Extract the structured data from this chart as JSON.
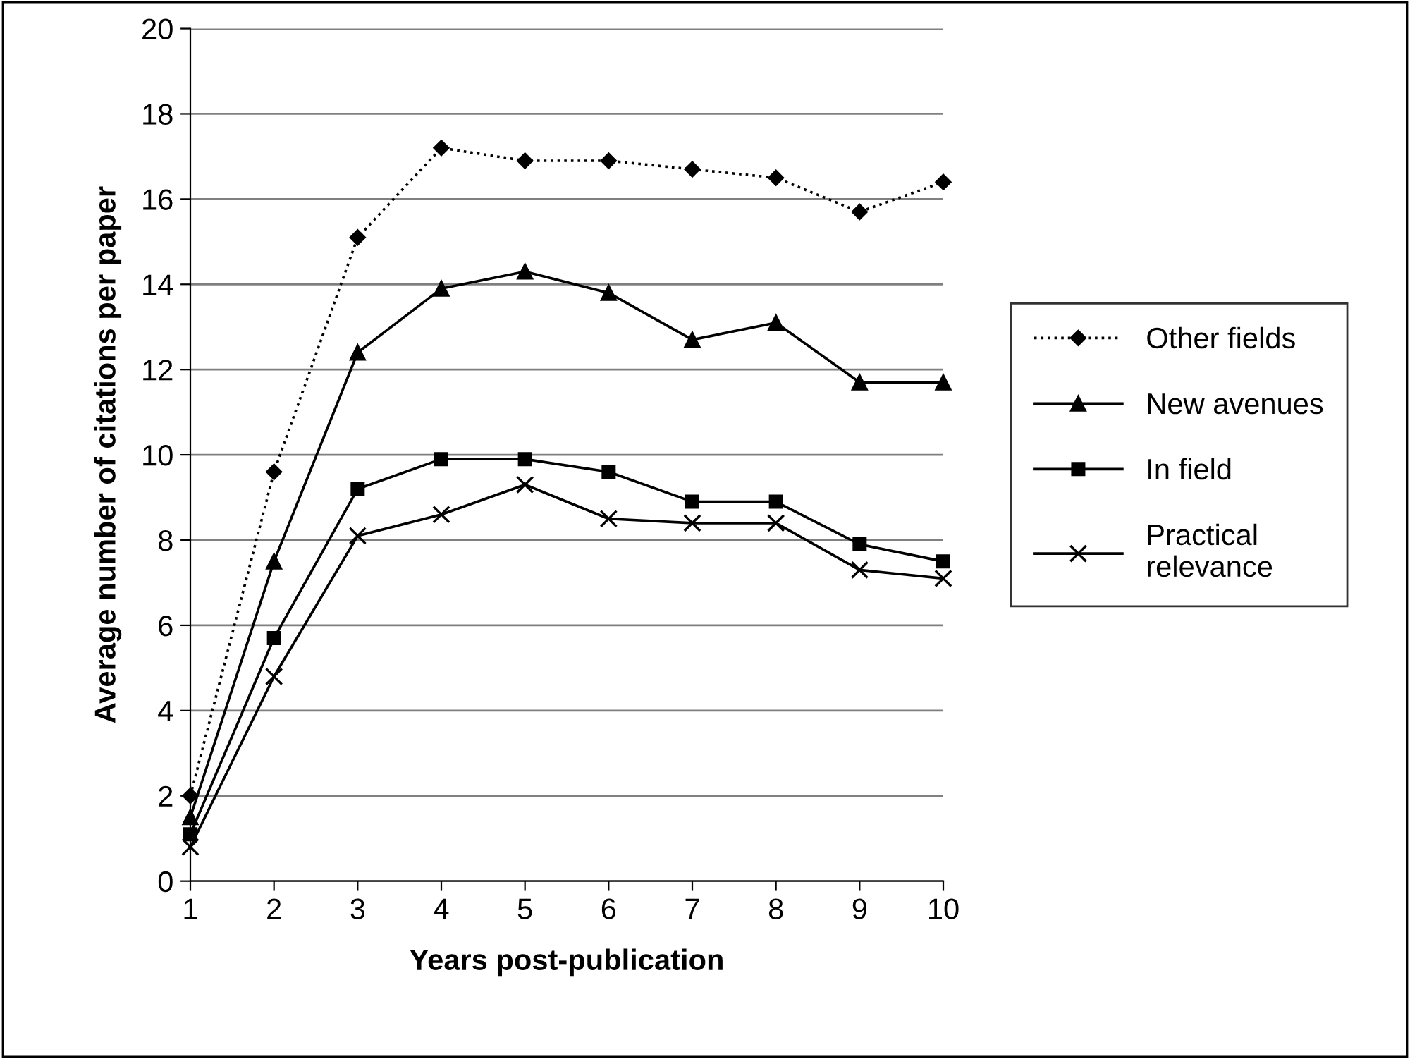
{
  "chart_data": {
    "type": "line",
    "xlabel": "Years post-publication",
    "ylabel": "Average number of citations per paper",
    "x": [
      1,
      2,
      3,
      4,
      5,
      6,
      7,
      8,
      9,
      10
    ],
    "xlim": [
      1,
      10
    ],
    "xticks": [
      1,
      2,
      3,
      4,
      5,
      6,
      7,
      8,
      9,
      10
    ],
    "ylim": [
      0,
      20
    ],
    "yticks": [
      0,
      2,
      4,
      6,
      8,
      10,
      12,
      14,
      16,
      18,
      20
    ],
    "grid": "y",
    "legend": "right",
    "series": [
      {
        "name": "Other fields",
        "color": "#000000",
        "marker": "diamond",
        "line_style": "dotted",
        "values": [
          2.0,
          9.6,
          15.1,
          17.2,
          16.9,
          16.9,
          16.7,
          16.5,
          15.7,
          16.4
        ]
      },
      {
        "name": "New avenues",
        "color": "#000000",
        "marker": "triangle",
        "line_style": "solid",
        "values": [
          1.5,
          7.5,
          12.4,
          13.9,
          14.3,
          13.8,
          12.7,
          13.1,
          11.7,
          11.7
        ]
      },
      {
        "name": "In field",
        "color": "#000000",
        "marker": "square",
        "line_style": "solid",
        "values": [
          1.1,
          5.7,
          9.2,
          9.9,
          9.9,
          9.6,
          8.9,
          8.9,
          7.9,
          7.5
        ]
      },
      {
        "name": "Practical\nrelevance",
        "color": "#000000",
        "marker": "cross",
        "line_style": "solid",
        "values": [
          0.8,
          4.8,
          8.1,
          8.6,
          9.3,
          8.5,
          8.4,
          8.4,
          7.3,
          7.1
        ]
      }
    ]
  }
}
